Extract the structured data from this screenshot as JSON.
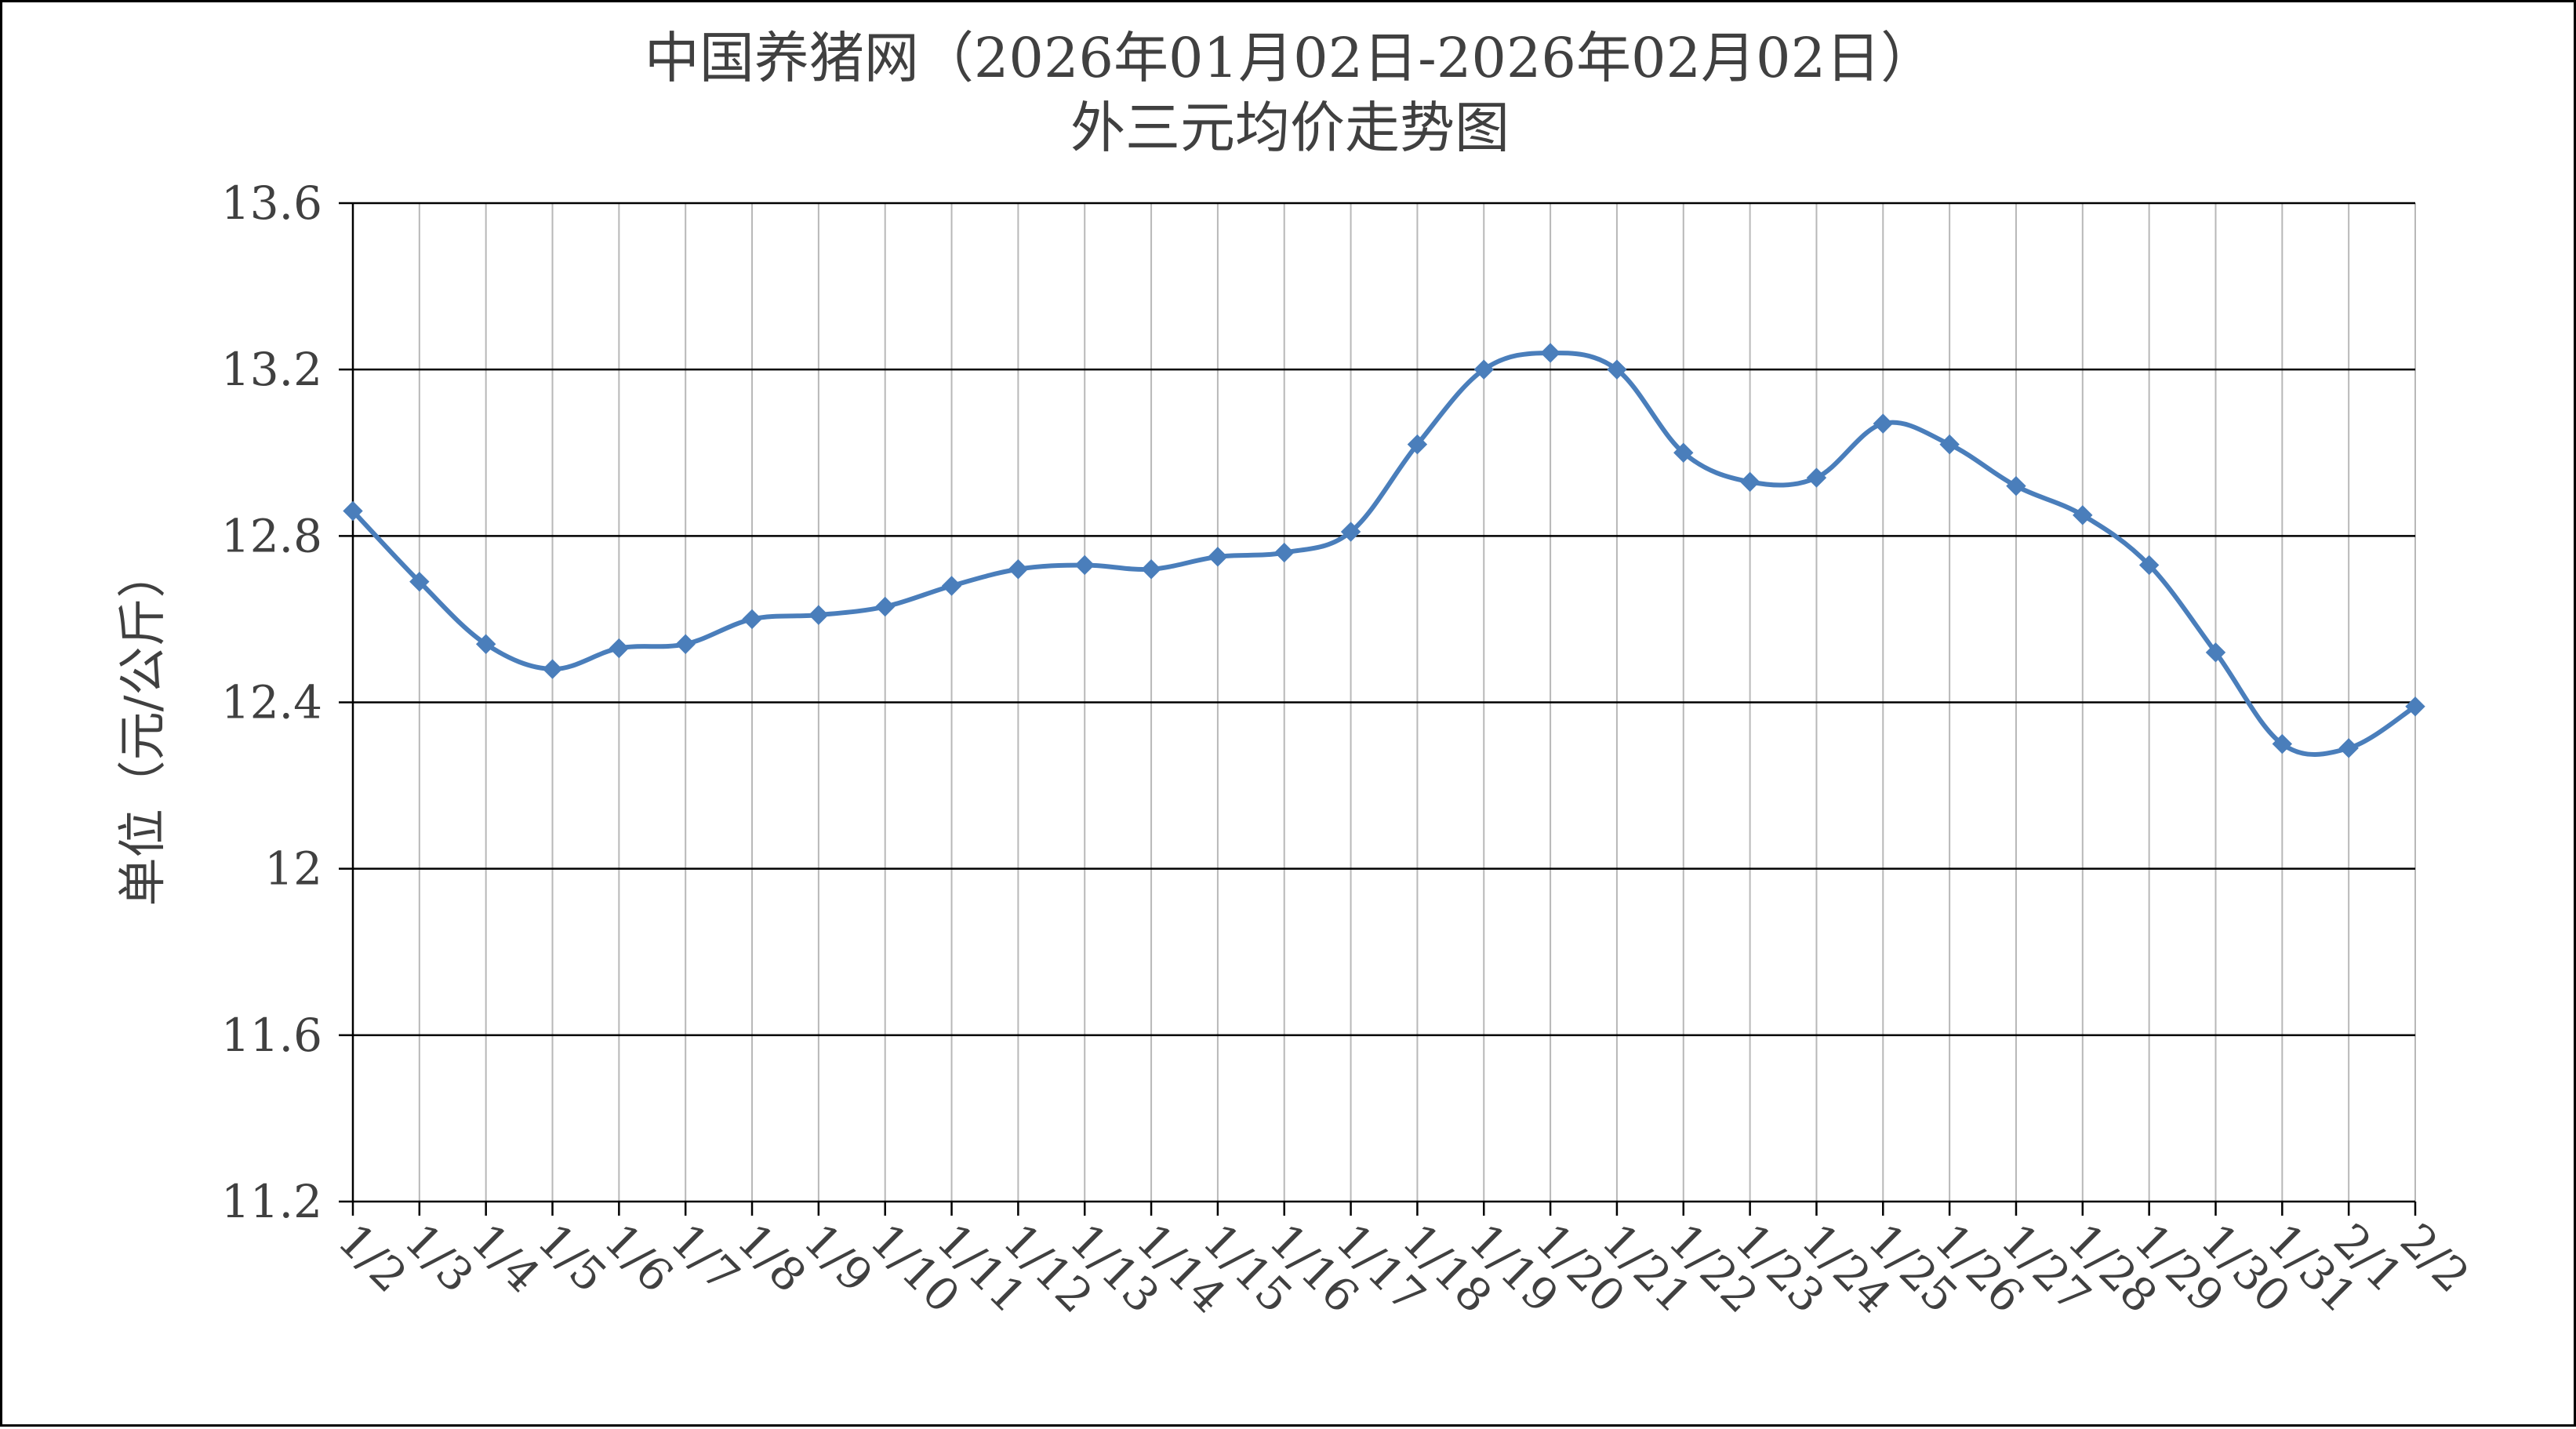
{
  "chart_data": {
    "type": "line",
    "title_line1": "中国养猪网（2026年01月02日-2026年02月02日）",
    "title_line2": "外三元均价走势图",
    "xlabel": "",
    "ylabel": "单位（元/公斤）",
    "ylim": [
      11.2,
      13.6
    ],
    "y_ticks": [
      "11.2",
      "11.6",
      "12",
      "12.4",
      "12.8",
      "13.2",
      "13.6"
    ],
    "grid": "on",
    "legend": "none",
    "categories": [
      "1/2",
      "1/3",
      "1/4",
      "1/5",
      "1/6",
      "1/7",
      "1/8",
      "1/9",
      "1/10",
      "1/11",
      "1/12",
      "1/13",
      "1/14",
      "1/15",
      "1/16",
      "1/17",
      "1/18",
      "1/19",
      "1/20",
      "1/21",
      "1/22",
      "1/23",
      "1/24",
      "1/25",
      "1/26",
      "1/27",
      "1/28",
      "1/29",
      "1/30",
      "1/31",
      "2/1",
      "2/2"
    ],
    "series": [
      {
        "values": [
          12.86,
          12.69,
          12.54,
          12.48,
          12.53,
          12.54,
          12.6,
          12.61,
          12.63,
          12.68,
          12.72,
          12.73,
          12.72,
          12.75,
          12.76,
          12.81,
          13.02,
          13.2,
          13.24,
          13.2,
          13.0,
          12.93,
          12.94,
          13.07,
          13.02,
          12.92,
          12.85,
          12.73,
          12.52,
          12.3,
          12.29,
          12.39
        ],
        "color": "#4a7ebb"
      }
    ]
  }
}
